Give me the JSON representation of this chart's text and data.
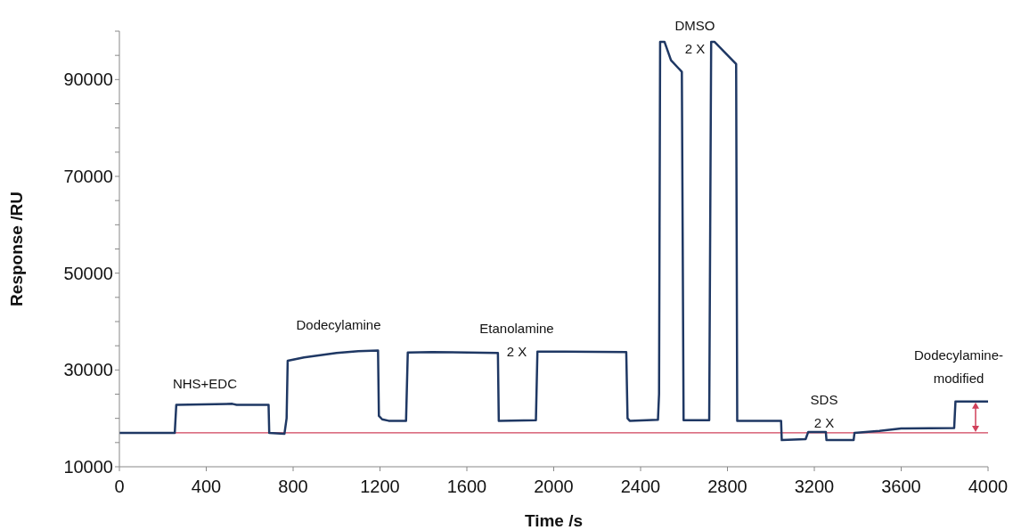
{
  "chart_data": {
    "type": "line",
    "xlabel": "Time  /s",
    "ylabel": "Response /RU",
    "series": [
      {
        "color": "#1f3864",
        "x": [
          0,
          255,
          262,
          520,
          540,
          687,
          690,
          760,
          770,
          775,
          850,
          1000,
          1100,
          1191,
          1195,
          1210,
          1240,
          1320,
          1328,
          1440,
          1743,
          1747,
          1918,
          1925,
          2050,
          2334,
          2340,
          2350,
          2480,
          2485,
          2490,
          2510,
          2540,
          2590,
          2598,
          2716,
          2725,
          2740,
          2840,
          2845,
          3047,
          3050,
          3160,
          3172,
          3253,
          3256,
          3381,
          3385,
          3500,
          3600,
          3844,
          3850,
          4000
        ],
        "values": [
          17000,
          17000,
          22800,
          23000,
          22800,
          22800,
          17000,
          16800,
          20000,
          31900,
          32600,
          33500,
          33900,
          34000,
          20500,
          19800,
          19500,
          19500,
          33600,
          33700,
          33500,
          19500,
          19600,
          33800,
          33800,
          33700,
          20000,
          19500,
          19700,
          25000,
          97800,
          97800,
          94000,
          91600,
          19600,
          19600,
          97800,
          97800,
          93200,
          19500,
          19500,
          15500,
          15700,
          17200,
          17200,
          15500,
          15500,
          17000,
          17400,
          17900,
          18000,
          23500,
          23500
        ]
      }
    ],
    "xlim": [
      0,
      4000
    ],
    "xticks": [
      0,
      400,
      800,
      1200,
      1600,
      2000,
      2400,
      2800,
      3200,
      3600,
      4000
    ],
    "ylim": [
      10000,
      100000
    ],
    "yticks": [
      10000,
      {
        "value": 15000,
        "label": null
      },
      {
        "value": 20000,
        "label": null
      },
      {
        "value": 25000,
        "label": null
      },
      30000,
      {
        "value": 35000,
        "label": null
      },
      {
        "value": 40000,
        "label": null
      },
      {
        "value": 45000,
        "label": null
      },
      50000,
      {
        "value": 55000,
        "label": null
      },
      {
        "value": 60000,
        "label": null
      },
      {
        "value": 65000,
        "label": null
      },
      70000,
      {
        "value": 75000,
        "label": null
      },
      {
        "value": 80000,
        "label": null
      },
      {
        "value": 85000,
        "label": null
      },
      90000,
      {
        "value": 95000,
        "label": null
      },
      {
        "value": 100000,
        "label": null
      }
    ],
    "ref_lines": [
      {
        "axis": "y",
        "value": 17000,
        "color": "#d0405a"
      }
    ],
    "annotations": [
      "NHS+EDC",
      "Dodecylamine",
      "Etanolamine\n2 X",
      "DMSO\n2 X",
      "SDS\n2 X",
      "Dodecylamine-\nmodified"
    ],
    "marker": "none",
    "line_style": "solid"
  }
}
